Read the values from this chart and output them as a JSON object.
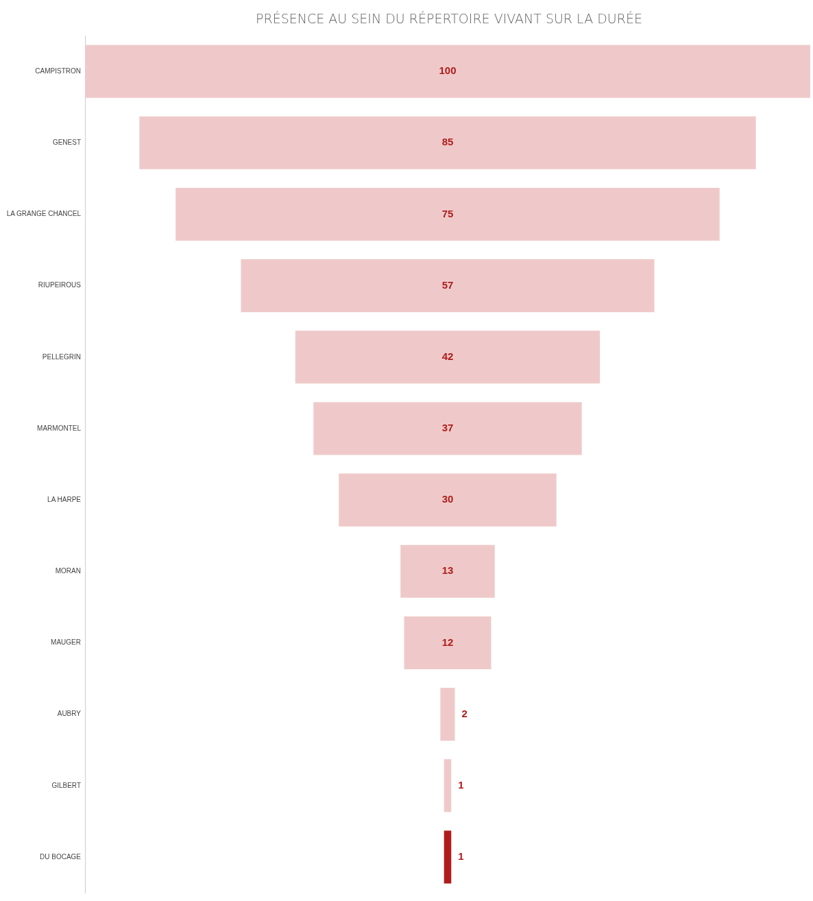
{
  "chart_data": {
    "type": "other",
    "title": "PRÉSENCE AU SEIN DU RÉPERTOIRE VIVANT SUR LA DURÉE",
    "categories": [
      "CAMPISTRON",
      "GENEST",
      "LA GRANGE CHANCEL",
      "RIUPEIROUS",
      "PELLEGRIN",
      "MARMONTEL",
      "LA HARPE",
      "MORAN",
      "MAUGER",
      "AUBRY",
      "GILBERT",
      "DU BOCAGE"
    ],
    "values": [
      100,
      85,
      75,
      57,
      42,
      37,
      30,
      13,
      12,
      2,
      1,
      1
    ],
    "colors": [
      "#efc9c9",
      "#efc9c9",
      "#efc9c9",
      "#efc9c9",
      "#efc9c9",
      "#efc9c9",
      "#efc9c9",
      "#efc9c9",
      "#efc9c9",
      "#efc9c9",
      "#efc9c9",
      "#b01c1c"
    ],
    "data_labels": true
  }
}
